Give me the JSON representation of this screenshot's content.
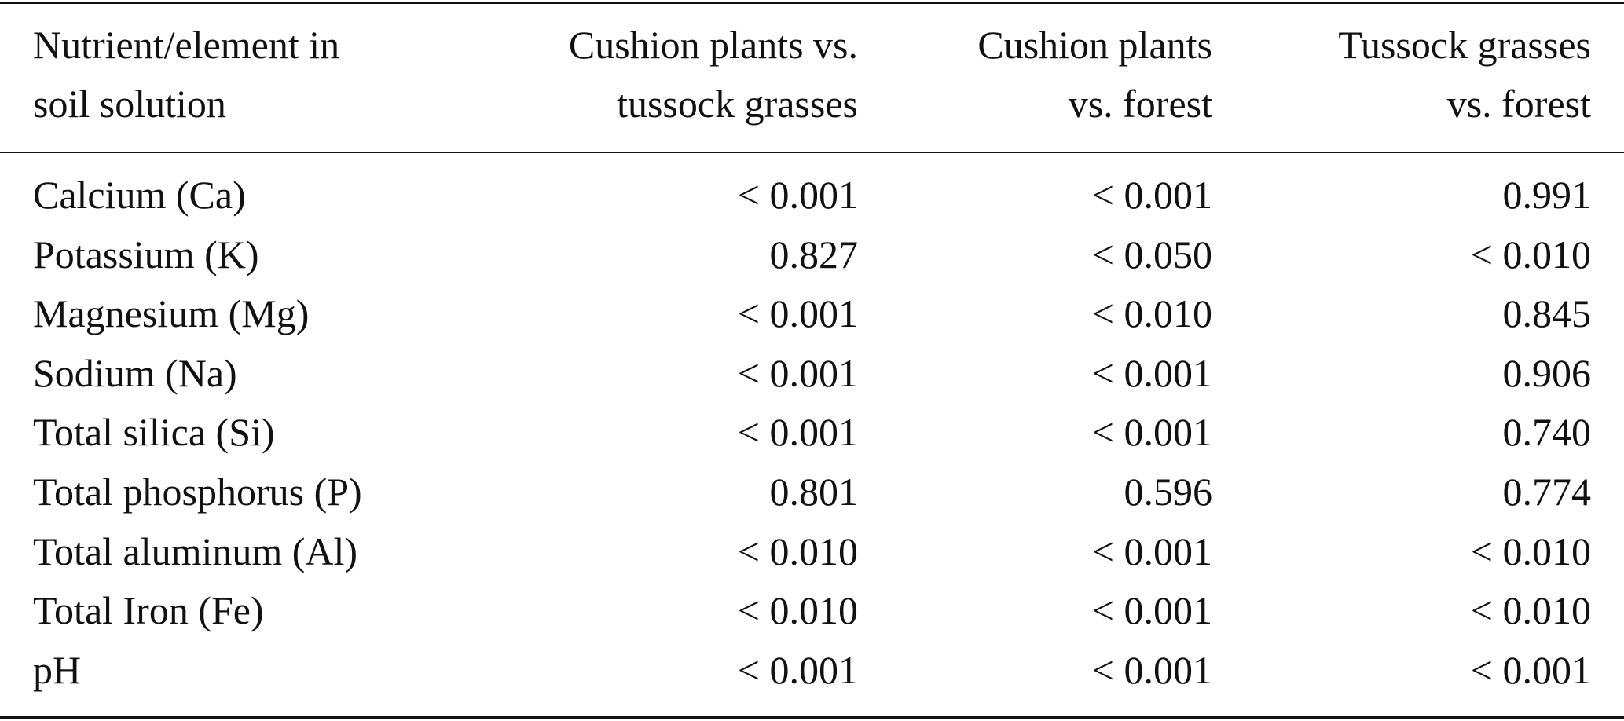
{
  "table": {
    "header": [
      [
        "Nutrient/element in",
        "soil solution"
      ],
      [
        "Cushion plants vs.",
        "tussock grasses"
      ],
      [
        "Cushion plants",
        "vs. forest"
      ],
      [
        "Tussock grasses",
        "vs. forest"
      ]
    ],
    "rows": [
      [
        "Calcium (Ca)",
        "< 0.001",
        "< 0.001",
        "0.991"
      ],
      [
        "Potassium (K)",
        "0.827",
        "< 0.050",
        "< 0.010"
      ],
      [
        "Magnesium (Mg)",
        "< 0.001",
        "< 0.010",
        "0.845"
      ],
      [
        "Sodium (Na)",
        "< 0.001",
        "< 0.001",
        "0.906"
      ],
      [
        "Total silica (Si)",
        "< 0.001",
        "< 0.001",
        "0.740"
      ],
      [
        "Total phosphorus (P)",
        "0.801",
        "0.596",
        "0.774"
      ],
      [
        "Total aluminum (Al)",
        "< 0.010",
        "< 0.001",
        "< 0.010"
      ],
      [
        "Total Iron (Fe)",
        "< 0.010",
        "< 0.001",
        "< 0.010"
      ],
      [
        "pH",
        "< 0.001",
        "< 0.001",
        "< 0.001"
      ]
    ]
  }
}
